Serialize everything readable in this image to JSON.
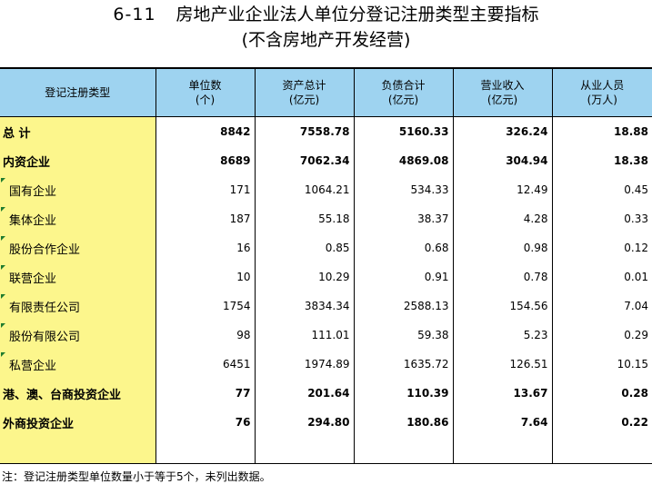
{
  "title": {
    "number": "6-11",
    "text": "房地产业企业法人单位分登记注册类型主要指标"
  },
  "subtitle": "(不含房地产开发经营)",
  "colors": {
    "header_bg": "#9ed3f0",
    "name_col_bg": "#fcf68c",
    "marker": "#1e7b2e"
  },
  "headers": [
    {
      "label": "登记注册类型",
      "unit": ""
    },
    {
      "label": "单位数",
      "unit": "(个)"
    },
    {
      "label": "资产总计",
      "unit": "(亿元)"
    },
    {
      "label": "负债合计",
      "unit": "(亿元)"
    },
    {
      "label": "营业收入",
      "unit": "(亿元)"
    },
    {
      "label": "从业人员",
      "unit": "(万人)"
    }
  ],
  "rows": [
    {
      "name": "总  计",
      "bold": true,
      "sub": false,
      "values": [
        "8842",
        "7558.78",
        "5160.33",
        "326.24",
        "18.88"
      ]
    },
    {
      "name": "内资企业",
      "bold": true,
      "sub": false,
      "values": [
        "8689",
        "7062.34",
        "4869.08",
        "304.94",
        "18.38"
      ]
    },
    {
      "name": "国有企业",
      "bold": false,
      "sub": true,
      "values": [
        "171",
        "1064.21",
        "534.33",
        "12.49",
        "0.45"
      ]
    },
    {
      "name": "集体企业",
      "bold": false,
      "sub": true,
      "values": [
        "187",
        "55.18",
        "38.37",
        "4.28",
        "0.33"
      ]
    },
    {
      "name": "股份合作企业",
      "bold": false,
      "sub": true,
      "values": [
        "16",
        "0.85",
        "0.68",
        "0.98",
        "0.12"
      ]
    },
    {
      "name": "联营企业",
      "bold": false,
      "sub": true,
      "values": [
        "10",
        "10.29",
        "0.91",
        "0.78",
        "0.01"
      ]
    },
    {
      "name": "有限责任公司",
      "bold": false,
      "sub": true,
      "values": [
        "1754",
        "3834.34",
        "2588.13",
        "154.56",
        "7.04"
      ]
    },
    {
      "name": "股份有限公司",
      "bold": false,
      "sub": true,
      "values": [
        "98",
        "111.01",
        "59.38",
        "5.23",
        "0.29"
      ]
    },
    {
      "name": "私营企业",
      "bold": false,
      "sub": true,
      "values": [
        "6451",
        "1974.89",
        "1635.72",
        "126.51",
        "10.15"
      ]
    },
    {
      "name": "港、澳、台商投资企业",
      "bold": true,
      "sub": false,
      "values": [
        "77",
        "201.64",
        "110.39",
        "13.67",
        "0.28"
      ]
    },
    {
      "name": "外商投资企业",
      "bold": true,
      "sub": false,
      "values": [
        "76",
        "294.80",
        "180.86",
        "7.64",
        "0.22"
      ]
    }
  ],
  "note": "注：登记注册类型单位数量小于等于5个，未列出数据。"
}
